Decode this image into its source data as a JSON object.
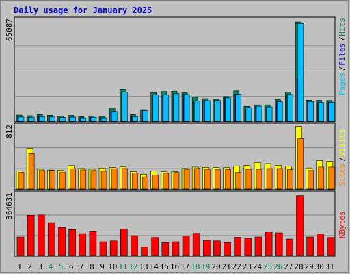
{
  "title": "Daily usage for January 2025",
  "colors": {
    "hits": "#00805c",
    "files": "#0000ff",
    "pages": "#00c0ff",
    "visits": "#ffff00",
    "sites": "#ff8000",
    "kbytes": "#ff0000",
    "weekend_label": "#00805c",
    "weekday_label": "#000000",
    "panel_bg": "#c0c0c0",
    "grid": "#808080"
  },
  "chart_data": [
    {
      "type": "bar",
      "panel": "top",
      "ymax_label": "65087",
      "ylim": [
        0,
        65087
      ],
      "legend": [
        "Pages",
        "Files",
        "Hits"
      ],
      "legend_colors": [
        "#00c0ff",
        "#0000ff",
        "#00805c"
      ],
      "series": [
        {
          "name": "Hits",
          "values": [
            3900,
            3500,
            4200,
            3800,
            3300,
            3700,
            2900,
            3400,
            3100,
            8400,
            20400,
            4200,
            7400,
            18300,
            18900,
            19100,
            18300,
            15400,
            14400,
            14000,
            15800,
            19300,
            9500,
            10400,
            10400,
            13800,
            18500,
            63300,
            13400,
            13300,
            13200
          ]
        },
        {
          "name": "Files",
          "values": [
            2700,
            2500,
            2900,
            2700,
            2400,
            2600,
            2100,
            2500,
            2200,
            6200,
            18500,
            2900,
            6700,
            16900,
            16900,
            17600,
            17000,
            12900,
            13100,
            13300,
            14900,
            17200,
            8700,
            9600,
            9100,
            12400,
            17000,
            27200,
            12500,
            11900,
            12000
          ]
        },
        {
          "name": "Pages",
          "values": [
            2700,
            2500,
            2900,
            2700,
            2400,
            2600,
            2100,
            2500,
            2200,
            6200,
            18500,
            2900,
            6700,
            16900,
            16900,
            17600,
            17000,
            12900,
            13100,
            13300,
            14900,
            17200,
            8700,
            9600,
            9100,
            12400,
            17000,
            62300,
            12500,
            11900,
            12000
          ]
        }
      ]
    },
    {
      "type": "bar",
      "panel": "middle",
      "ymax_label": "812",
      "ylim": [
        0,
        812
      ],
      "legend": [
        "Sites",
        "Visits"
      ],
      "legend_colors": [
        "#ff8000",
        "#ffff00"
      ],
      "series": [
        {
          "name": "Visits",
          "values": [
            230,
            520,
            253,
            243,
            241,
            298,
            263,
            253,
            268,
            276,
            285,
            222,
            190,
            230,
            221,
            224,
            263,
            280,
            276,
            274,
            273,
            295,
            301,
            338,
            323,
            303,
            292,
            797,
            269,
            362,
            355
          ]
        },
        {
          "name": "Sites",
          "values": [
            212,
            451,
            237,
            237,
            212,
            260,
            245,
            237,
            228,
            260,
            263,
            204,
            156,
            178,
            202,
            212,
            253,
            263,
            253,
            246,
            248,
            212,
            253,
            253,
            262,
            262,
            248,
            642,
            237,
            280,
            280
          ]
        }
      ]
    },
    {
      "type": "bar",
      "panel": "bottom",
      "ymax_label": "364631",
      "ylim": [
        0,
        364631
      ],
      "legend": [
        "KBytes"
      ],
      "legend_colors": [
        "#ff0000"
      ],
      "series": [
        {
          "name": "KBytes",
          "values": [
            108000,
            235000,
            237000,
            192000,
            163000,
            151000,
            128000,
            143000,
            80000,
            85000,
            155000,
            116000,
            51000,
            105000,
            75000,
            80000,
            115000,
            129000,
            88000,
            85000,
            75000,
            106000,
            100000,
            108000,
            139000,
            132000,
            96000,
            350000,
            108000,
            126000,
            105000
          ]
        }
      ]
    }
  ],
  "x_labels": [
    "1",
    "2",
    "3",
    "4",
    "5",
    "6",
    "7",
    "8",
    "9",
    "10",
    "11",
    "12",
    "13",
    "14",
    "15",
    "16",
    "17",
    "18",
    "19",
    "20",
    "21",
    "22",
    "23",
    "24",
    "25",
    "26",
    "27",
    "28",
    "29",
    "30",
    "31"
  ],
  "weekend_days": [
    4,
    5,
    11,
    12,
    18,
    19,
    25,
    26
  ]
}
